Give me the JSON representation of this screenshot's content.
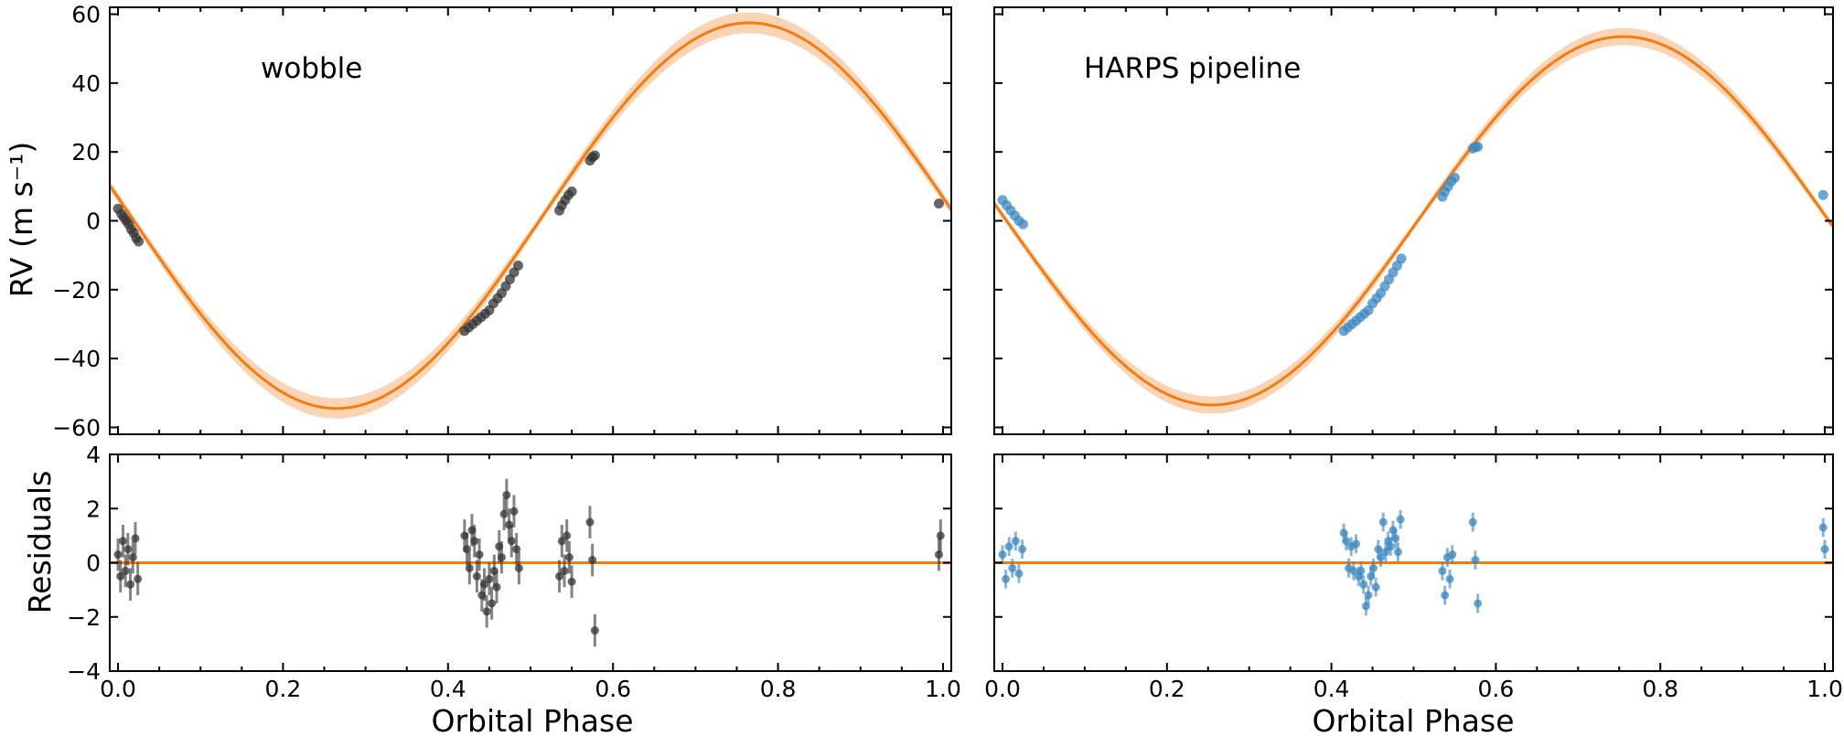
{
  "colors": {
    "model": "#f47c0f",
    "model_band": "#f8c79c",
    "wobble_points": "#333333",
    "harps_points": "#3a87c0",
    "zero_line": "#f47c0f"
  },
  "labels": {
    "ylabel_top": "RV (m s⁻¹)",
    "ylabel_bottom": "Residuals",
    "xlabel": "Orbital Phase"
  },
  "chart_data": [
    {
      "type": "scatter",
      "title": "wobble",
      "panel": "rv",
      "xlim": [
        -0.01,
        1.01
      ],
      "ylim": [
        -62,
        62
      ],
      "yticks": [
        -60,
        -40,
        -20,
        0,
        20,
        40,
        60
      ],
      "xticks": [
        0.0,
        0.2,
        0.4,
        0.6,
        0.8,
        1.0
      ],
      "model": {
        "amplitude": 56,
        "phase_peak": 0.765,
        "offset": 1.5,
        "band_width": 3
      },
      "series": [
        {
          "x": [
            0.0,
            0.004,
            0.007,
            0.01,
            0.013,
            0.016,
            0.019,
            0.022,
            0.025,
            0.42,
            0.425,
            0.43,
            0.435,
            0.44,
            0.445,
            0.45,
            0.455,
            0.46,
            0.465,
            0.47,
            0.475,
            0.48,
            0.485,
            0.535,
            0.538,
            0.542,
            0.546,
            0.55,
            0.572,
            0.575,
            0.578,
            0.995
          ],
          "y": [
            3.5,
            2,
            1,
            0,
            -1,
            -2.5,
            -3.5,
            -5,
            -6,
            -32,
            -31,
            -30,
            -29,
            -28,
            -27,
            -26,
            -24,
            -22.5,
            -21,
            -19,
            -17,
            -15,
            -13,
            3,
            4.5,
            6,
            7.5,
            8.5,
            17.5,
            18.5,
            19,
            5
          ]
        }
      ]
    },
    {
      "type": "scatter",
      "title": "HARPS pipeline",
      "panel": "rv",
      "xlim": [
        -0.01,
        1.01
      ],
      "ylim": [
        -62,
        62
      ],
      "yticks": [
        -60,
        -40,
        -20,
        0,
        20,
        40,
        60
      ],
      "xticks": [
        0.0,
        0.2,
        0.4,
        0.6,
        0.8,
        1.0
      ],
      "model": {
        "amplitude": 53.5,
        "phase_peak": 0.755,
        "offset": 0,
        "band_width": 2.5
      },
      "series": [
        {
          "x": [
            0.0,
            0.005,
            0.01,
            0.015,
            0.02,
            0.025,
            0.415,
            0.42,
            0.425,
            0.43,
            0.435,
            0.44,
            0.445,
            0.45,
            0.455,
            0.46,
            0.465,
            0.47,
            0.475,
            0.48,
            0.485,
            0.535,
            0.538,
            0.542,
            0.546,
            0.55,
            0.572,
            0.575,
            0.578,
            0.998
          ],
          "y": [
            6,
            4.5,
            3,
            1.5,
            0,
            -1,
            -32,
            -31,
            -30,
            -29,
            -28,
            -27,
            -26,
            -24,
            -22.5,
            -21,
            -19,
            -17,
            -15,
            -13,
            -11,
            7,
            8.5,
            10,
            11.5,
            12.5,
            21,
            21.5,
            21.5,
            7.5
          ]
        }
      ]
    },
    {
      "type": "scatter",
      "panel": "residuals",
      "xlim": [
        -0.01,
        1.01
      ],
      "ylim": [
        -4,
        4
      ],
      "yticks": [
        -4,
        -2,
        0,
        2,
        4
      ],
      "xticks": [
        0.0,
        0.2,
        0.4,
        0.6,
        0.8,
        1.0
      ],
      "series": [
        {
          "x": [
            0.0,
            0.003,
            0.006,
            0.009,
            0.012,
            0.015,
            0.018,
            0.021,
            0.024,
            0.42,
            0.423,
            0.426,
            0.429,
            0.432,
            0.435,
            0.438,
            0.441,
            0.444,
            0.447,
            0.45,
            0.453,
            0.456,
            0.459,
            0.462,
            0.465,
            0.468,
            0.471,
            0.474,
            0.477,
            0.48,
            0.483,
            0.486,
            0.535,
            0.538,
            0.541,
            0.544,
            0.547,
            0.55,
            0.572,
            0.575,
            0.578,
            0.995,
            0.997
          ],
          "y": [
            0.3,
            -0.5,
            0.8,
            -0.3,
            0.5,
            -0.8,
            0.2,
            0.9,
            -0.6,
            1.0,
            0.5,
            -0.2,
            1.2,
            0.8,
            -0.5,
            0.3,
            -1.2,
            -0.8,
            -1.8,
            -0.6,
            -1.5,
            -0.3,
            -0.9,
            0.6,
            0.2,
            1.8,
            2.5,
            1.4,
            0.8,
            1.9,
            0.5,
            -0.2,
            -0.5,
            0.8,
            -0.3,
            1.0,
            0.2,
            -0.7,
            1.5,
            0.1,
            -2.5,
            0.3,
            1.0
          ],
          "err": 0.6
        }
      ]
    },
    {
      "type": "scatter",
      "panel": "residuals",
      "xlim": [
        -0.01,
        1.01
      ],
      "ylim": [
        -4,
        4
      ],
      "yticks": [
        -4,
        -2,
        0,
        2,
        4
      ],
      "xticks": [
        0.0,
        0.2,
        0.4,
        0.6,
        0.8,
        1.0
      ],
      "series": [
        {
          "x": [
            0.0,
            0.004,
            0.008,
            0.012,
            0.016,
            0.02,
            0.024,
            0.415,
            0.418,
            0.421,
            0.424,
            0.427,
            0.43,
            0.433,
            0.436,
            0.439,
            0.442,
            0.445,
            0.448,
            0.451,
            0.454,
            0.457,
            0.46,
            0.463,
            0.466,
            0.469,
            0.472,
            0.475,
            0.478,
            0.481,
            0.484,
            0.535,
            0.538,
            0.541,
            0.544,
            0.547,
            0.572,
            0.575,
            0.578,
            0.998,
            1.0
          ],
          "y": [
            0.3,
            -0.6,
            0.6,
            -0.2,
            0.8,
            -0.4,
            0.5,
            1.1,
            0.8,
            -0.2,
            0.6,
            -0.3,
            0.7,
            -0.5,
            -0.3,
            -0.8,
            -1.6,
            -1.2,
            -0.5,
            -0.2,
            -0.9,
            0.5,
            0.2,
            1.5,
            0.4,
            0.8,
            0.6,
            1.2,
            0.9,
            0.4,
            1.6,
            -0.3,
            -1.2,
            0.2,
            -0.6,
            0.3,
            1.5,
            0.1,
            -1.5,
            1.3,
            0.5
          ],
          "err": 0.35
        }
      ]
    }
  ]
}
